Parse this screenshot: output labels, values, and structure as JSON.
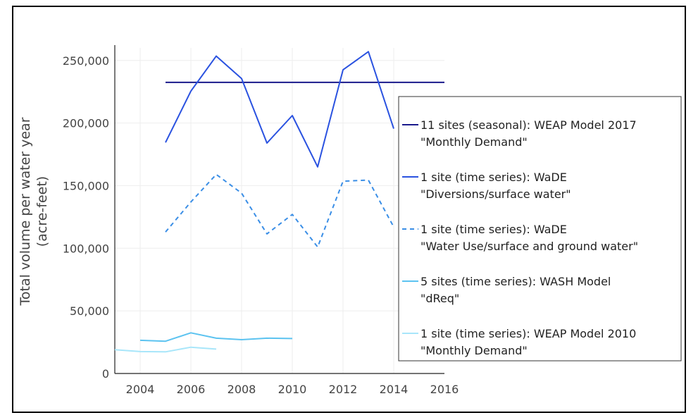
{
  "chart_data": {
    "type": "line",
    "title": "",
    "xlabel": "",
    "ylabel": [
      "Total volume per water year",
      "(acre-feet)"
    ],
    "xlim": [
      2003,
      2016
    ],
    "ylim": [
      0,
      260000
    ],
    "xticks": [
      "2004",
      "2006",
      "2008",
      "2010",
      "2012",
      "2014",
      "2016"
    ],
    "yticks": [
      "0",
      "50,000",
      "100,000",
      "150,000",
      "200,000",
      "250,000"
    ],
    "ytick_values": [
      0,
      50000,
      100000,
      150000,
      200000,
      250000
    ],
    "xtick_values": [
      2004,
      2006,
      2008,
      2010,
      2012,
      2014,
      2016
    ],
    "grid": true,
    "legend_position": "right",
    "series": [
      {
        "name": [
          "11 sites (seasonal): WEAP Model 2017",
          "\"Monthly Demand\""
        ],
        "color": "#1a1a8c",
        "dash": "solid",
        "x": [
          2005,
          2016
        ],
        "y": [
          232500,
          232500
        ]
      },
      {
        "name": [
          "1 site (time series): WaDE",
          "\"Diversions/surface water\""
        ],
        "color": "#2a52e0",
        "dash": "solid",
        "x": [
          2005,
          2006,
          2007,
          2008,
          2009,
          2010,
          2011,
          2012,
          2013,
          2014
        ],
        "y": [
          184500,
          225500,
          253500,
          235500,
          184000,
          206000,
          165000,
          242500,
          257000,
          195500
        ]
      },
      {
        "name": [
          "1 site (time series): WaDE",
          "\"Water Use/surface and ground water\""
        ],
        "color": "#3a8ee6",
        "dash": "dashed",
        "x": [
          2005,
          2006,
          2007,
          2008,
          2009,
          2010,
          2011,
          2012,
          2013,
          2014
        ],
        "y": [
          113000,
          137000,
          159000,
          144000,
          111500,
          127000,
          101000,
          153500,
          154500,
          117000
        ]
      },
      {
        "name": [
          "5 sites (time series): WASH Model",
          "\"dReq\""
        ],
        "color": "#5cc3f0",
        "dash": "solid",
        "x": [
          2004,
          2005,
          2006,
          2007,
          2008,
          2009,
          2010
        ],
        "y": [
          26500,
          25800,
          32500,
          28200,
          27000,
          28200,
          27900
        ]
      },
      {
        "name": [
          "1 site (time series): WEAP Model 2010",
          "\"Monthly Demand\""
        ],
        "color": "#a8e6fa",
        "dash": "solid",
        "x": [
          2003,
          2004,
          2005,
          2006,
          2007
        ],
        "y": [
          19000,
          17500,
          17300,
          21000,
          19500
        ]
      }
    ]
  }
}
